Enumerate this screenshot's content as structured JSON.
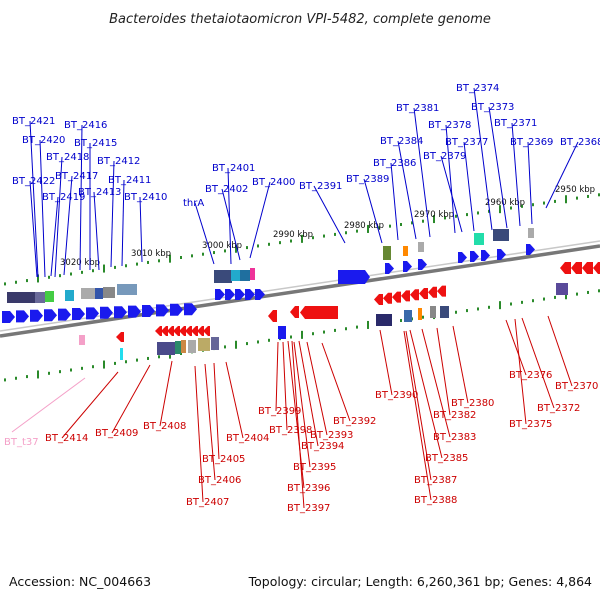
{
  "title": "Bacteroides thetaiotaomicron VPI-5482, complete genome",
  "footer": {
    "accession": "Accession: NC_004663",
    "summary": "Topology: circular; Length: 6,260,361 bp; Genes: 4,864"
  },
  "colors": {
    "forward_label": "#0000cc",
    "reverse_label": "#cc0000",
    "trna_label": "#f4a0c8",
    "tick": "#2a8a2a",
    "backbone": "#808080"
  },
  "scale_labels": [
    {
      "text": "3020 kbp"
    },
    {
      "text": "3010 kbp"
    },
    {
      "text": "3000 kbp"
    },
    {
      "text": "2990 kbp"
    },
    {
      "text": "2980 kbp"
    },
    {
      "text": "2970 kbp"
    },
    {
      "text": "2960 kbp"
    },
    {
      "text": "2950 kbp"
    }
  ],
  "forward_genes": [
    "BT_2421",
    "BT_2420",
    "BT_2418",
    "BT_2422",
    "BT_2416",
    "BT_2415",
    "BT_2417",
    "BT_2419",
    "BT_2413",
    "BT_2412",
    "BT_2411",
    "BT_2410",
    "thrA",
    "BT_2401",
    "BT_2402",
    "BT_2400",
    "BT_2391",
    "BT_2389",
    "BT_2386",
    "BT_2384",
    "BT_2381",
    "BT_2378",
    "BT_2379",
    "BT_2377",
    "BT_2374",
    "BT_2373",
    "BT_2371",
    "BT_2369",
    "BT_2368"
  ],
  "reverse_genes": [
    "BT_t37",
    "BT_2414",
    "BT_2409",
    "BT_2408",
    "BT_2407",
    "BT_2406",
    "BT_2405",
    "BT_2404",
    "BT_2399",
    "BT_2398",
    "BT_2397",
    "BT_2396",
    "BT_2395",
    "BT_2394",
    "BT_2393",
    "BT_2392",
    "BT_2390",
    "BT_2388",
    "BT_2387",
    "BT_2385",
    "BT_2383",
    "BT_2382",
    "BT_2380",
    "BT_2376",
    "BT_2375",
    "BT_2372",
    "BT_2370"
  ]
}
